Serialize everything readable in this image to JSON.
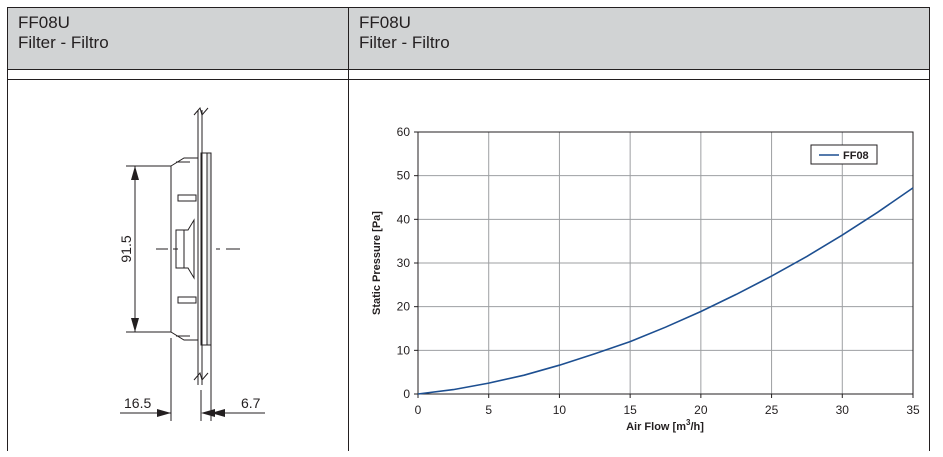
{
  "left_panel": {
    "code": "FF08U",
    "name": "Filter - Filtro",
    "dimensions": {
      "height": "91.5",
      "depth_left": "16.5",
      "depth_right": "6.7"
    }
  },
  "right_panel": {
    "code": "FF08U",
    "name": "Filter - Filtro"
  },
  "colors": {
    "header_bg": "#d1d3d4",
    "curve": "#1d4f91",
    "grid": "#9d9fa2",
    "border": "#231f20"
  },
  "chart_data": {
    "type": "line",
    "title": "",
    "xlabel": "Air Flow [m3/h]",
    "ylabel": "Static Pressure [Pa]",
    "xlim": [
      0,
      35
    ],
    "ylim": [
      0,
      60
    ],
    "xticks": [
      "0",
      "5",
      "10",
      "15",
      "20",
      "25",
      "30",
      "35"
    ],
    "yticks": [
      "0",
      "10",
      "20",
      "30",
      "40",
      "50",
      "60"
    ],
    "grid": true,
    "legend_position": "top-right",
    "series": [
      {
        "name": "FF08",
        "x": [
          0,
          2.5,
          5,
          7.5,
          10,
          12.5,
          15,
          17.5,
          20,
          22.5,
          25,
          27.5,
          30,
          32.5,
          35
        ],
        "y": [
          0,
          1.0,
          2.5,
          4.3,
          6.6,
          9.2,
          12.0,
          15.3,
          18.9,
          22.8,
          27.0,
          31.5,
          36.4,
          41.6,
          47.2
        ]
      }
    ]
  }
}
